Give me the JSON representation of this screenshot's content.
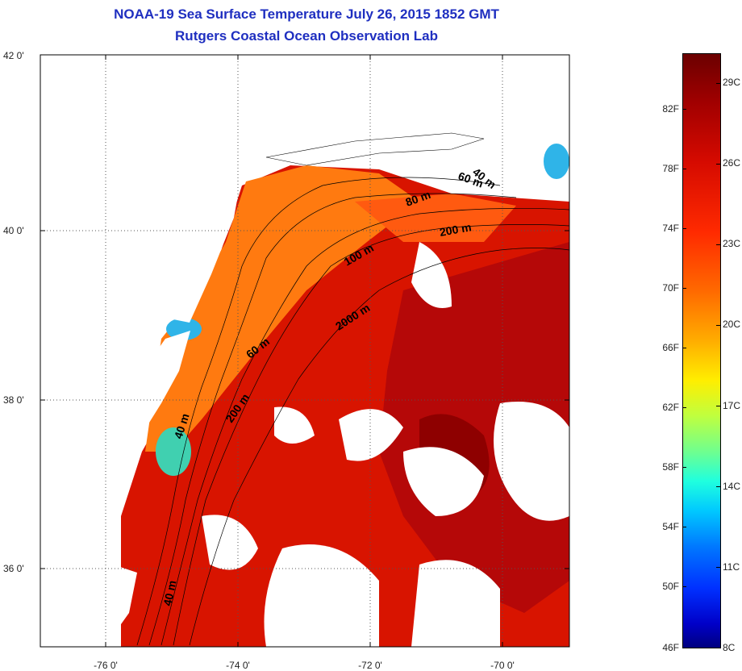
{
  "title": "NOAA-19 Sea Surface Temperature July 26, 2015 1852 GMT",
  "subtitle": "Rutgers Coastal Ocean Observation Lab",
  "lat_labels": [
    "42 0'",
    "40 0'",
    "38 0'",
    "36 0'"
  ],
  "lon_labels": [
    "-76 0'",
    "-74 0'",
    "-72 0'",
    "-70 0'"
  ],
  "depth_labels": [
    "40 m",
    "60 m",
    "80 m",
    "200 m",
    "100 m",
    "2000 m",
    "60 m",
    "40 m",
    "200 m",
    "40 m"
  ],
  "colorbar": {
    "fahrenheit": [
      "82F",
      "78F",
      "74F",
      "70F",
      "66F",
      "62F",
      "58F",
      "54F",
      "50F",
      "46F"
    ],
    "celsius": [
      "29C",
      "26C",
      "23C",
      "20C",
      "17C",
      "14C",
      "11C",
      "8C"
    ]
  },
  "colors": {
    "title": "#1f2fc0",
    "warm": "#d81400",
    "hot": "#9a0000",
    "cool": "#2fb4e8",
    "land": "#ffffff"
  }
}
